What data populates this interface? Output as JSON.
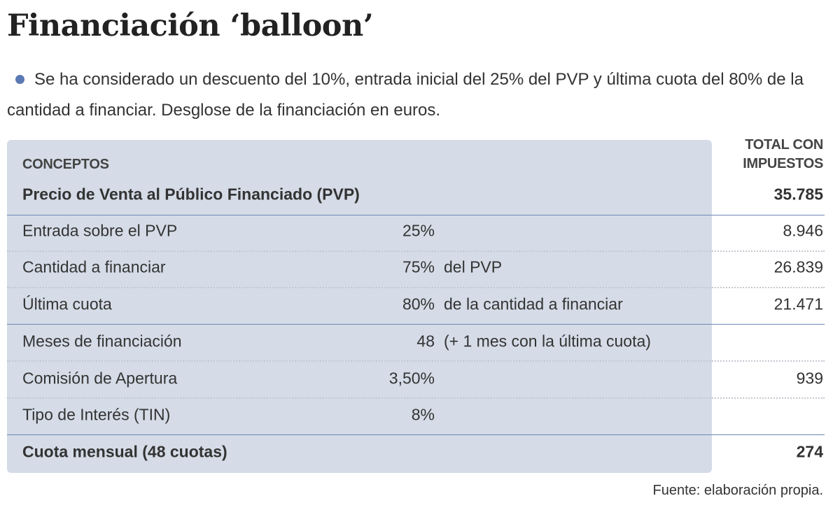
{
  "title": "Financiación ‘balloon’",
  "subtitle": "Se ha considerado un descuento del 10%, entrada inicial del 25% del PVP y última cuota del 80% de la cantidad a financiar. Desglose de la financiación en euros.",
  "colors": {
    "panel": "#d5dce7",
    "accent": "#5b79b4",
    "rule": "#6f86b4"
  },
  "chart_data": {
    "type": "table",
    "headers": {
      "concept": "CONCEPTOS",
      "total": "TOTAL CON IMPUESTOS"
    },
    "rows": [
      {
        "label": "Precio de Venta al Público Financiado (PVP)",
        "pct": "",
        "note": "",
        "total": "35.785"
      },
      {
        "label": "Entrada sobre el PVP",
        "pct": "25%",
        "note": "",
        "total": "8.946"
      },
      {
        "label": "Cantidad a financiar",
        "pct": "75%",
        "note": "del PVP",
        "total": "26.839"
      },
      {
        "label": "Última cuota",
        "pct": "80%",
        "note": "de la cantidad a financiar",
        "total": "21.471"
      },
      {
        "label": "Meses de financiación",
        "pct": "48",
        "note": "(+ 1 mes con la última cuota)",
        "total": ""
      },
      {
        "label": "Comisión de Apertura",
        "pct": "3,50%",
        "note": "",
        "total": "939"
      },
      {
        "label": "Tipo de Interés (TIN)",
        "pct": "8%",
        "note": "",
        "total": ""
      },
      {
        "label": "Cuota mensual (48 cuotas)",
        "pct": "",
        "note": "",
        "total": "274"
      }
    ]
  },
  "source": "Fuente: elaboración propia."
}
